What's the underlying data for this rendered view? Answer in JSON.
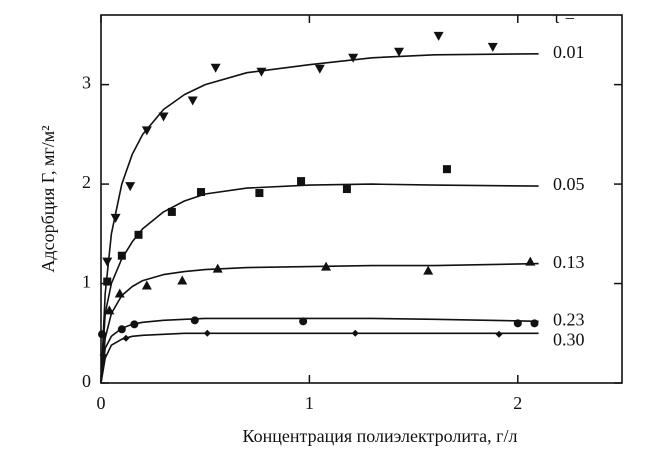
{
  "chart_data": {
    "type": "scatter",
    "x_label": "Концентрация полиэлектролита, г/л",
    "y_label": "Адсорбция Γ, мг/м²",
    "legend_title": "τ =",
    "xlim": [
      0,
      2.5
    ],
    "ylim": [
      0,
      3.7
    ],
    "xticks": [
      0,
      1,
      2
    ],
    "yticks": [
      0,
      1,
      2,
      3
    ],
    "grid": false,
    "series": [
      {
        "name": "0.01",
        "color": "#111111",
        "marker": "triangle-down",
        "x": [
          0.03,
          0.07,
          0.14,
          0.22,
          0.3,
          0.44,
          0.55,
          0.77,
          1.05,
          1.21,
          1.43,
          1.62,
          1.88
        ],
        "values": [
          1.22,
          1.66,
          1.98,
          2.54,
          2.68,
          2.84,
          3.17,
          3.13,
          3.16,
          3.27,
          3.33,
          3.49,
          3.38
        ],
        "fit_x": [
          0,
          0.02,
          0.05,
          0.1,
          0.15,
          0.2,
          0.3,
          0.4,
          0.5,
          0.7,
          1,
          1.3,
          1.6,
          2.1
        ],
        "fit_values": [
          0,
          0.9,
          1.5,
          2.0,
          2.3,
          2.5,
          2.75,
          2.9,
          3.0,
          3.12,
          3.2,
          3.27,
          3.3,
          3.31
        ]
      },
      {
        "name": "0.05",
        "color": "#111111",
        "marker": "square",
        "x": [
          0.03,
          0.1,
          0.18,
          0.34,
          0.48,
          0.76,
          0.96,
          1.18,
          1.66
        ],
        "values": [
          1.02,
          1.28,
          1.49,
          1.72,
          1.92,
          1.91,
          2.03,
          1.95,
          2.15
        ],
        "fit_x": [
          0,
          0.02,
          0.05,
          0.1,
          0.15,
          0.2,
          0.3,
          0.4,
          0.5,
          0.7,
          1,
          1.3,
          1.6,
          2.1
        ],
        "fit_values": [
          0,
          0.7,
          1.0,
          1.25,
          1.42,
          1.55,
          1.72,
          1.83,
          1.9,
          1.96,
          1.99,
          2.0,
          1.99,
          1.98
        ]
      },
      {
        "name": "0.13",
        "color": "#111111",
        "marker": "triangle-up",
        "x": [
          0.04,
          0.09,
          0.22,
          0.39,
          0.56,
          1.08,
          1.57,
          2.06
        ],
        "values": [
          0.73,
          0.9,
          0.98,
          1.03,
          1.15,
          1.17,
          1.13,
          1.22
        ],
        "fit_x": [
          0,
          0.02,
          0.05,
          0.1,
          0.15,
          0.2,
          0.3,
          0.4,
          0.5,
          0.7,
          1,
          1.3,
          1.6,
          2.1
        ],
        "fit_values": [
          0,
          0.45,
          0.7,
          0.88,
          0.97,
          1.03,
          1.09,
          1.12,
          1.14,
          1.16,
          1.17,
          1.18,
          1.18,
          1.2
        ]
      },
      {
        "name": "0.23",
        "color": "#111111",
        "marker": "circle",
        "x": [
          0.005,
          0.1,
          0.16,
          0.45,
          0.97,
          2.0,
          2.08
        ],
        "values": [
          0.49,
          0.54,
          0.59,
          0.63,
          0.62,
          0.6,
          0.6
        ],
        "fit_x": [
          0,
          0.02,
          0.05,
          0.1,
          0.15,
          0.2,
          0.3,
          0.4,
          0.5,
          0.7,
          1,
          1.3,
          1.6,
          2.1
        ],
        "fit_values": [
          0,
          0.35,
          0.47,
          0.55,
          0.59,
          0.61,
          0.63,
          0.64,
          0.65,
          0.65,
          0.65,
          0.65,
          0.64,
          0.62
        ]
      },
      {
        "name": "0.30",
        "color": "#111111",
        "marker": "diamond",
        "x": [
          0.01,
          0.12,
          0.51,
          1.22,
          1.91
        ],
        "values": [
          0.28,
          0.45,
          0.5,
          0.5,
          0.49
        ],
        "fit_x": [
          0,
          0.02,
          0.05,
          0.1,
          0.15,
          0.2,
          0.3,
          0.4,
          0.5,
          0.7,
          1,
          1.3,
          1.6,
          2.1
        ],
        "fit_values": [
          0,
          0.25,
          0.38,
          0.44,
          0.47,
          0.48,
          0.49,
          0.5,
          0.5,
          0.5,
          0.5,
          0.5,
          0.5,
          0.5
        ]
      }
    ]
  }
}
